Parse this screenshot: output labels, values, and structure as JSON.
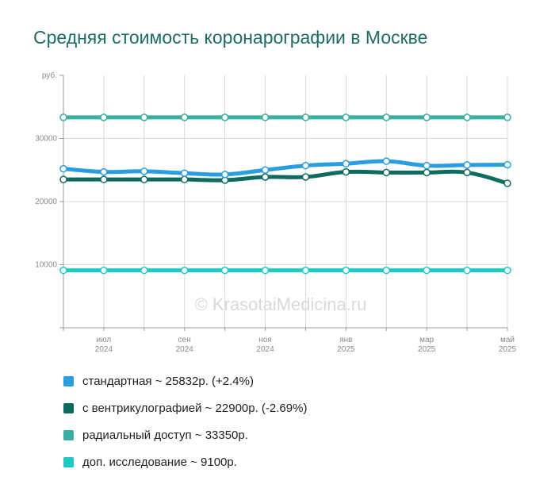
{
  "title": "Средняя стоимость коронарографии в Москве",
  "watermark": "© KrasotaiMedicina.ru",
  "chart_data": {
    "type": "line",
    "title": "Средняя стоимость коронарографии в Москве",
    "ylabel": "руб.",
    "ylim": [
      0,
      40000
    ],
    "y_ticks": [
      "10000",
      "20000",
      "30000"
    ],
    "x_ticks": [
      {
        "month": "июл",
        "year": "2024"
      },
      {
        "month": "сен",
        "year": "2024"
      },
      {
        "month": "ноя",
        "year": "2024"
      },
      {
        "month": "янв",
        "year": "2025"
      },
      {
        "month": "мар",
        "year": "2025"
      },
      {
        "month": "май",
        "year": "2025"
      }
    ],
    "grid": true,
    "legend_position": "bottom",
    "series": [
      {
        "name": "радиальный доступ",
        "color": "#3aaea0",
        "values": [
          33350,
          33350,
          33350,
          33350,
          33350,
          33350,
          33350,
          33350,
          33350,
          33350,
          33350,
          33350
        ]
      },
      {
        "name": "доп. исследование",
        "color": "#1ec9c6",
        "values": [
          9100,
          9100,
          9100,
          9100,
          9100,
          9100,
          9100,
          9100,
          9100,
          9100,
          9100,
          9100
        ]
      },
      {
        "name": "с вентрикулографией",
        "color": "#0e6b5f",
        "values": [
          23500,
          23500,
          23500,
          23500,
          23400,
          23900,
          23900,
          24700,
          24600,
          24600,
          24600,
          22900
        ]
      },
      {
        "name": "стандартная",
        "color": "#2a9de0",
        "values": [
          25200,
          24700,
          24800,
          24500,
          24300,
          25000,
          25700,
          26000,
          26400,
          25700,
          25800,
          25832
        ]
      }
    ]
  },
  "legend": [
    {
      "label": "стандартная ~ 25832р. (+2.4%)",
      "color": "#2a9de0"
    },
    {
      "label": "с вентрикулографией ~ 22900р. (-2.69%)",
      "color": "#0e6b5f"
    },
    {
      "label": "радиальный доступ ~ 33350р.",
      "color": "#3aaea0"
    },
    {
      "label": "доп. исследование ~ 9100р.",
      "color": "#1ec9c6"
    }
  ]
}
